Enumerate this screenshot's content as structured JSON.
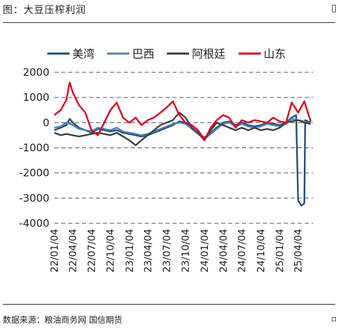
{
  "header": {
    "title": "图：大豆压榨利润",
    "corner_mark": "▯"
  },
  "footer": {
    "source": "数据来源：粮油商务网  国信期货",
    "corner_mark": "▫"
  },
  "colors": {
    "美湾": "#1f4e79",
    "巴西": "#4f81bd",
    "阿根廷": "#404040",
    "山东": "#e3001b",
    "grid": "#555555"
  },
  "chart_data": {
    "type": "line",
    "title": "",
    "xlabel": "",
    "ylabel": "",
    "ylim": [
      -4000,
      2000
    ],
    "yticks": [
      2000,
      1000,
      0,
      -1000,
      -2000,
      -3000,
      -4000
    ],
    "ytick_labels": [
      "2000",
      "1000",
      "0",
      "-1000",
      "-2000",
      "-3000",
      "-4000"
    ],
    "grid": "horizontal dashed",
    "legend": "top",
    "xlim": [
      "2022-01-04",
      "2025-06-15"
    ],
    "xticks": [
      "22/01/04",
      "22/04/04",
      "22/07/04",
      "22/10/04",
      "23/01/04",
      "23/04/04",
      "23/07/04",
      "23/10/04",
      "24/01/04",
      "24/04/04",
      "24/07/04",
      "24/10/04",
      "25/01/04",
      "25/04/04"
    ],
    "series": [
      {
        "name": "美湾",
        "color": "#1f4e79",
        "points": [
          [
            "2022-01-04",
            -300
          ],
          [
            "2022-02-04",
            -200
          ],
          [
            "2022-03-04",
            -100
          ],
          [
            "2022-03-20",
            150
          ],
          [
            "2022-04-04",
            0
          ],
          [
            "2022-05-04",
            -200
          ],
          [
            "2022-06-04",
            -300
          ],
          [
            "2022-07-04",
            -400
          ],
          [
            "2022-08-04",
            -250
          ],
          [
            "2022-09-04",
            -300
          ],
          [
            "2022-10-04",
            -350
          ],
          [
            "2022-11-04",
            -300
          ],
          [
            "2022-12-04",
            -400
          ],
          [
            "2023-01-04",
            -450
          ],
          [
            "2023-02-04",
            -500
          ],
          [
            "2023-03-04",
            -550
          ],
          [
            "2023-04-04",
            -500
          ],
          [
            "2023-05-04",
            -400
          ],
          [
            "2023-06-04",
            -300
          ],
          [
            "2023-07-04",
            -200
          ],
          [
            "2023-08-04",
            -100
          ],
          [
            "2023-09-04",
            50
          ],
          [
            "2023-10-04",
            0
          ],
          [
            "2023-11-04",
            -200
          ],
          [
            "2023-12-04",
            -400
          ],
          [
            "2024-01-04",
            -600
          ],
          [
            "2024-02-04",
            -400
          ],
          [
            "2024-03-04",
            -200
          ],
          [
            "2024-04-04",
            0
          ],
          [
            "2024-05-04",
            50
          ],
          [
            "2024-06-04",
            -100
          ],
          [
            "2024-07-04",
            0
          ],
          [
            "2024-08-04",
            -100
          ],
          [
            "2024-09-04",
            -150
          ],
          [
            "2024-10-04",
            -100
          ],
          [
            "2024-11-04",
            0
          ],
          [
            "2024-12-04",
            -50
          ],
          [
            "2025-01-04",
            -100
          ],
          [
            "2025-02-04",
            0
          ],
          [
            "2025-03-04",
            200
          ],
          [
            "2025-03-25",
            300
          ],
          [
            "2025-04-04",
            -3100
          ],
          [
            "2025-04-20",
            -3300
          ],
          [
            "2025-05-04",
            -3200
          ],
          [
            "2025-05-08",
            100
          ],
          [
            "2025-06-04",
            0
          ]
        ]
      },
      {
        "name": "巴西",
        "color": "#4f81bd",
        "points": [
          [
            "2022-01-04",
            -200
          ],
          [
            "2022-02-04",
            -150
          ],
          [
            "2022-03-04",
            0
          ],
          [
            "2022-04-04",
            -100
          ],
          [
            "2022-05-04",
            -250
          ],
          [
            "2022-06-04",
            -300
          ],
          [
            "2022-07-04",
            -350
          ],
          [
            "2022-08-04",
            -200
          ],
          [
            "2022-09-04",
            -250
          ],
          [
            "2022-10-04",
            -300
          ],
          [
            "2022-11-04",
            -200
          ],
          [
            "2022-12-04",
            -350
          ],
          [
            "2023-01-04",
            -400
          ],
          [
            "2023-02-04",
            -450
          ],
          [
            "2023-03-04",
            -500
          ],
          [
            "2023-04-04",
            -450
          ],
          [
            "2023-05-04",
            -350
          ],
          [
            "2023-06-04",
            -250
          ],
          [
            "2023-07-04",
            -150
          ],
          [
            "2023-08-04",
            -50
          ],
          [
            "2023-09-04",
            0
          ],
          [
            "2023-10-04",
            -50
          ],
          [
            "2023-11-04",
            -250
          ],
          [
            "2023-12-04",
            -450
          ],
          [
            "2024-01-04",
            -650
          ],
          [
            "2024-02-04",
            -450
          ],
          [
            "2024-03-04",
            -250
          ],
          [
            "2024-04-04",
            -50
          ],
          [
            "2024-05-04",
            0
          ],
          [
            "2024-06-04",
            -150
          ],
          [
            "2024-07-04",
            -50
          ],
          [
            "2024-08-04",
            -150
          ],
          [
            "2024-09-04",
            -200
          ],
          [
            "2024-10-04",
            -150
          ],
          [
            "2024-11-04",
            -50
          ],
          [
            "2024-12-04",
            -100
          ],
          [
            "2025-01-04",
            -150
          ],
          [
            "2025-02-04",
            -50
          ],
          [
            "2025-03-04",
            150
          ],
          [
            "2025-04-04",
            100
          ],
          [
            "2025-05-04",
            50
          ],
          [
            "2025-06-04",
            -50
          ]
        ]
      },
      {
        "name": "阿根廷",
        "color": "#404040",
        "points": [
          [
            "2022-01-04",
            -400
          ],
          [
            "2022-02-04",
            -500
          ],
          [
            "2022-03-04",
            -450
          ],
          [
            "2022-04-04",
            -500
          ],
          [
            "2022-05-04",
            -550
          ],
          [
            "2022-06-04",
            -500
          ],
          [
            "2022-07-04",
            -450
          ],
          [
            "2022-08-04",
            -400
          ],
          [
            "2022-09-04",
            -450
          ],
          [
            "2022-10-04",
            -500
          ],
          [
            "2022-11-04",
            -400
          ],
          [
            "2022-12-04",
            -550
          ],
          [
            "2023-01-04",
            -700
          ],
          [
            "2023-02-04",
            -900
          ],
          [
            "2023-03-04",
            -700
          ],
          [
            "2023-04-04",
            -500
          ],
          [
            "2023-05-04",
            -300
          ],
          [
            "2023-06-04",
            -100
          ],
          [
            "2023-07-04",
            0
          ],
          [
            "2023-08-04",
            100
          ],
          [
            "2023-09-04",
            400
          ],
          [
            "2023-10-04",
            200
          ],
          [
            "2023-11-04",
            -200
          ],
          [
            "2023-12-04",
            -400
          ],
          [
            "2024-01-04",
            -700
          ],
          [
            "2024-02-04",
            -300
          ],
          [
            "2024-03-04",
            0
          ],
          [
            "2024-04-04",
            -100
          ],
          [
            "2024-05-04",
            -200
          ],
          [
            "2024-06-04",
            -300
          ],
          [
            "2024-07-04",
            -200
          ],
          [
            "2024-08-04",
            -300
          ],
          [
            "2024-09-04",
            -200
          ],
          [
            "2024-10-04",
            -300
          ],
          [
            "2024-11-04",
            -250
          ],
          [
            "2024-12-04",
            -300
          ],
          [
            "2025-01-04",
            -200
          ],
          [
            "2025-02-04",
            0
          ],
          [
            "2025-03-04",
            50
          ],
          [
            "2025-04-04",
            100
          ],
          [
            "2025-05-04",
            0
          ],
          [
            "2025-06-04",
            -50
          ]
        ]
      },
      {
        "name": "山东",
        "color": "#e3001b",
        "points": [
          [
            "2022-01-04",
            300
          ],
          [
            "2022-02-04",
            500
          ],
          [
            "2022-03-04",
            900
          ],
          [
            "2022-03-20",
            1600
          ],
          [
            "2022-04-04",
            1200
          ],
          [
            "2022-05-04",
            700
          ],
          [
            "2022-06-04",
            400
          ],
          [
            "2022-07-04",
            -300
          ],
          [
            "2022-08-04",
            -500
          ],
          [
            "2022-09-04",
            0
          ],
          [
            "2022-10-04",
            500
          ],
          [
            "2022-11-04",
            800
          ],
          [
            "2022-12-04",
            200
          ],
          [
            "2023-01-04",
            0
          ],
          [
            "2023-02-04",
            200
          ],
          [
            "2023-03-04",
            -100
          ],
          [
            "2023-04-04",
            100
          ],
          [
            "2023-05-04",
            200
          ],
          [
            "2023-06-04",
            400
          ],
          [
            "2023-07-04",
            600
          ],
          [
            "2023-08-04",
            850
          ],
          [
            "2023-09-04",
            300
          ],
          [
            "2023-10-04",
            0
          ],
          [
            "2023-11-04",
            -100
          ],
          [
            "2023-12-04",
            -300
          ],
          [
            "2024-01-04",
            -700
          ],
          [
            "2024-02-04",
            -200
          ],
          [
            "2024-03-04",
            100
          ],
          [
            "2024-04-04",
            300
          ],
          [
            "2024-05-04",
            200
          ],
          [
            "2024-06-04",
            -200
          ],
          [
            "2024-07-04",
            100
          ],
          [
            "2024-08-04",
            0
          ],
          [
            "2024-09-04",
            100
          ],
          [
            "2024-10-04",
            50
          ],
          [
            "2024-11-04",
            0
          ],
          [
            "2024-12-04",
            200
          ],
          [
            "2025-01-04",
            50
          ],
          [
            "2025-02-04",
            0
          ],
          [
            "2025-03-04",
            800
          ],
          [
            "2025-04-04",
            400
          ],
          [
            "2025-05-04",
            850
          ],
          [
            "2025-06-04",
            50
          ]
        ]
      }
    ]
  }
}
